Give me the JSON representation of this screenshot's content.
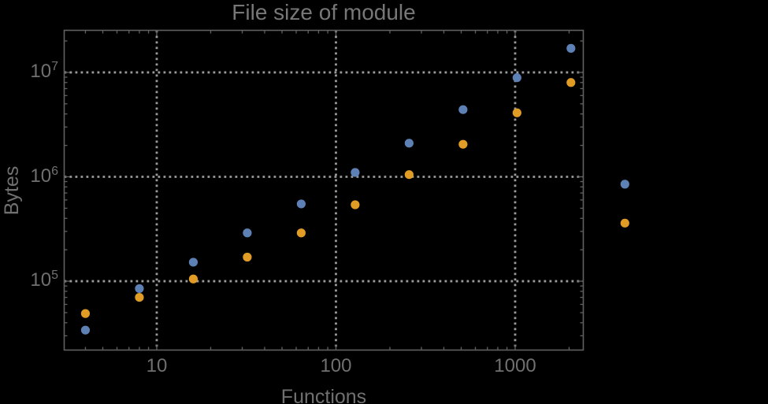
{
  "colors": {
    "background": "#000000",
    "frame": "#616161",
    "grid": "#9a9a9a",
    "text": "#707070",
    "series_blue": "#5e81b5",
    "series_orange": "#e09c24"
  },
  "chart_data": {
    "type": "scatter",
    "title": "File size of module",
    "xlabel": "Functions",
    "ylabel": "Bytes",
    "x_scale": "log",
    "y_scale": "log",
    "grid": "dotted",
    "legend": "none",
    "xlim": [
      3.045,
      2400
    ],
    "ylim": [
      21900,
      25300000
    ],
    "x": [
      4,
      8,
      16,
      32,
      64,
      128,
      256,
      512,
      1024,
      2048,
      4096
    ],
    "series": [
      {
        "name": "blue",
        "color": "#5e81b5",
        "values": [
          34000,
          85000,
          152000,
          290000,
          550000,
          1100000,
          2100000,
          4400000,
          8900000,
          17000000,
          850000
        ]
      },
      {
        "name": "orange",
        "color": "#e09c24",
        "values": [
          49000,
          70000,
          105000,
          170000,
          290000,
          540000,
          1050000,
          2050000,
          4100000,
          8000000,
          360000
        ]
      }
    ],
    "x_gridlines": [
      10,
      100,
      1000
    ],
    "y_gridlines": [
      100000,
      1000000,
      10000000
    ],
    "x_tick_labels": [
      {
        "label": "10",
        "value": 10
      },
      {
        "label": "100",
        "value": 100
      },
      {
        "label": "1000",
        "value": 1000
      }
    ],
    "y_tick_labels": [
      {
        "base": "10",
        "exponent": "5",
        "value": 100000
      },
      {
        "base": "10",
        "exponent": "6",
        "value": 1000000
      },
      {
        "base": "10",
        "exponent": "7",
        "value": 10000000
      }
    ],
    "note": "last x (4096) points fall outside right frame edge"
  }
}
